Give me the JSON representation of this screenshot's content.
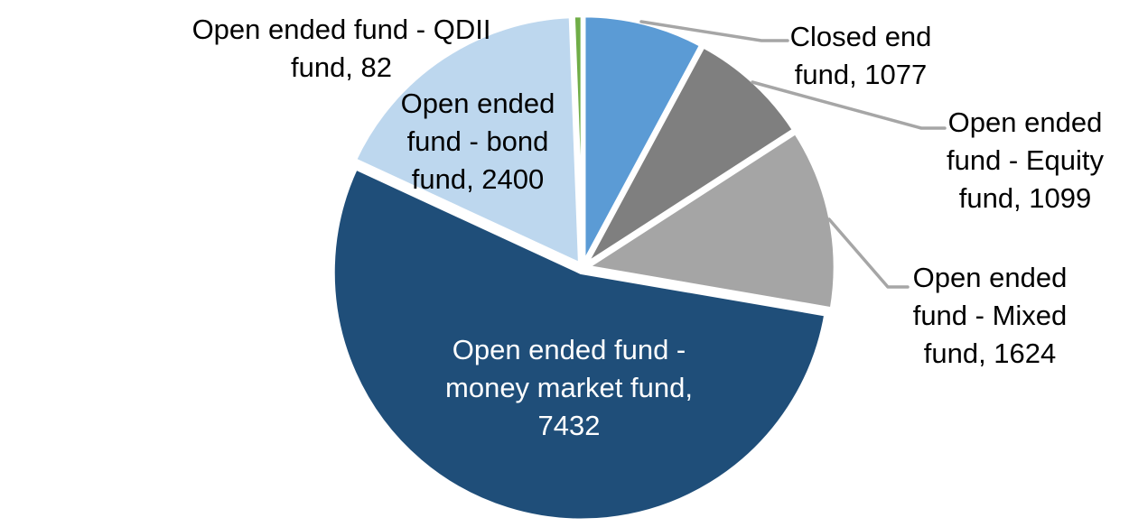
{
  "chart_data": {
    "type": "pie",
    "title": "",
    "legend": "none",
    "total": 13714,
    "start_angle_deg": 0,
    "direction": "clockwise",
    "background_color": "#FFFFFF",
    "slice_border_color": "#FFFFFF",
    "leader_line_color": "#A6A6A6",
    "slices": [
      {
        "id": "closed-end-fund",
        "label": "Closed end fund",
        "value": 1077,
        "color": "#5B9BD5"
      },
      {
        "id": "equity-fund",
        "label": "Open ended fund - Equity fund",
        "value": 1099,
        "color": "#7F7F7F"
      },
      {
        "id": "mixed-fund",
        "label": "Open ended fund - Mixed fund",
        "value": 1624,
        "color": "#A5A5A5"
      },
      {
        "id": "money-market-fund",
        "label": "Open ended fund - money market fund",
        "value": 7432,
        "color": "#1F4E79"
      },
      {
        "id": "bond-fund",
        "label": "Open ended fund - bond fund",
        "value": 2400,
        "color": "#BDD7EE"
      },
      {
        "id": "qdii-fund",
        "label": "Open ended fund - QDII fund",
        "value": 82,
        "color": "#70AD47"
      }
    ],
    "data_labels": {
      "qdii": {
        "lines": [
          "Open ended fund - QDII",
          "fund, 82"
        ],
        "color": "#000000"
      },
      "bond": {
        "lines": [
          "Open ended",
          "fund - bond",
          "fund, 2400"
        ],
        "color": "#000000"
      },
      "closed": {
        "lines": [
          "Closed end",
          "fund, 1077"
        ],
        "color": "#000000"
      },
      "equity": {
        "lines": [
          "Open ended",
          "fund - Equity",
          "fund, 1099"
        ],
        "color": "#000000"
      },
      "mixed": {
        "lines": [
          "Open ended",
          "fund - Mixed",
          "fund, 1624"
        ],
        "color": "#000000"
      },
      "money": {
        "lines": [
          "Open ended fund -",
          "money market fund,",
          "7432"
        ],
        "color": "#FFFFFF"
      }
    }
  }
}
